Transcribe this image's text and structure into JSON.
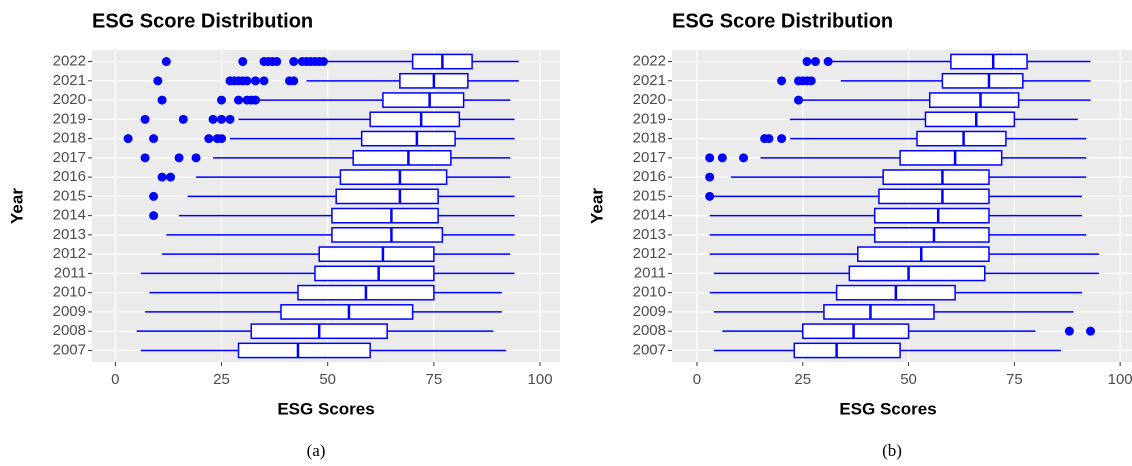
{
  "chart_data": [
    {
      "type": "boxplot",
      "title": "ESG Score Distribution",
      "x_label": "ESG Scores",
      "y_label": "Year",
      "caption": "(a)",
      "color": "#0000ff",
      "grid": true,
      "xlim": [
        -5.5,
        104.7
      ],
      "xticks": [
        0,
        25,
        50,
        75,
        100
      ],
      "categories": [
        "2007",
        "2008",
        "2009",
        "2010",
        "2011",
        "2012",
        "2013",
        "2014",
        "2015",
        "2016",
        "2017",
        "2018",
        "2019",
        "2020",
        "2021",
        "2022"
      ],
      "whisker_low": [
        6,
        5,
        7,
        8,
        6,
        11,
        12,
        15,
        17,
        19,
        23,
        27,
        29,
        34,
        45,
        50
      ],
      "q1": [
        29,
        32,
        39,
        43,
        47,
        48,
        51,
        51,
        52,
        53,
        56,
        58,
        60,
        63,
        67,
        70
      ],
      "median": [
        43,
        48,
        55,
        59,
        62,
        63,
        65,
        65,
        67,
        67,
        69,
        71,
        72,
        74,
        75,
        77
      ],
      "q3": [
        60,
        64,
        70,
        75,
        75,
        75,
        77,
        76,
        76,
        78,
        79,
        80,
        81,
        82,
        83,
        84
      ],
      "whisker_high": [
        92,
        89,
        91,
        91,
        94,
        93,
        94,
        94,
        94,
        93,
        93,
        94,
        94,
        93,
        95,
        95
      ],
      "outliers": [
        [],
        [],
        [],
        [],
        [],
        [],
        [],
        [
          9
        ],
        [
          9
        ],
        [
          11,
          13
        ],
        [
          7,
          15,
          19
        ],
        [
          3,
          9,
          22,
          24,
          25
        ],
        [
          7,
          16,
          23,
          25,
          27
        ],
        [
          11,
          25,
          29,
          31,
          32,
          33
        ],
        [
          10,
          27,
          28,
          29,
          30,
          31,
          33,
          35,
          41,
          42
        ],
        [
          12,
          30,
          35,
          36,
          37,
          38,
          42,
          44,
          45,
          46,
          47,
          48,
          49
        ]
      ]
    },
    {
      "type": "boxplot",
      "title": "ESG Score Distribution",
      "x_label": "ESG Scores",
      "y_label": "Year",
      "caption": "(b)",
      "color": "#0000ff",
      "grid": true,
      "xlim": [
        -5.9,
        102.8
      ],
      "xticks": [
        0,
        25,
        50,
        75,
        100
      ],
      "categories": [
        "2007",
        "2008",
        "2009",
        "2010",
        "2011",
        "2012",
        "2013",
        "2014",
        "2015",
        "2016",
        "2017",
        "2018",
        "2019",
        "2020",
        "2021",
        "2022"
      ],
      "whisker_low": [
        4,
        6,
        4,
        3,
        4,
        3,
        3,
        3,
        4,
        8,
        15,
        22,
        22,
        25,
        34,
        32
      ],
      "q1": [
        23,
        25,
        30,
        33,
        36,
        38,
        42,
        42,
        43,
        44,
        48,
        52,
        54,
        55,
        58,
        60
      ],
      "median": [
        33,
        37,
        41,
        47,
        50,
        53,
        56,
        57,
        58,
        58,
        61,
        63,
        66,
        67,
        69,
        70
      ],
      "q3": [
        48,
        50,
        56,
        61,
        68,
        69,
        69,
        69,
        69,
        69,
        72,
        73,
        75,
        76,
        77,
        78
      ],
      "whisker_high": [
        86,
        80,
        89,
        91,
        95,
        95,
        92,
        91,
        91,
        92,
        92,
        92,
        90,
        93,
        93,
        93
      ],
      "outliers": [
        [],
        [
          88,
          93
        ],
        [],
        [],
        [],
        [],
        [],
        [],
        [
          3
        ],
        [
          3
        ],
        [
          3,
          6,
          11
        ],
        [
          16,
          17,
          20
        ],
        [],
        [
          24
        ],
        [
          20,
          24,
          25,
          26,
          27
        ],
        [
          26,
          28,
          31
        ]
      ]
    }
  ]
}
